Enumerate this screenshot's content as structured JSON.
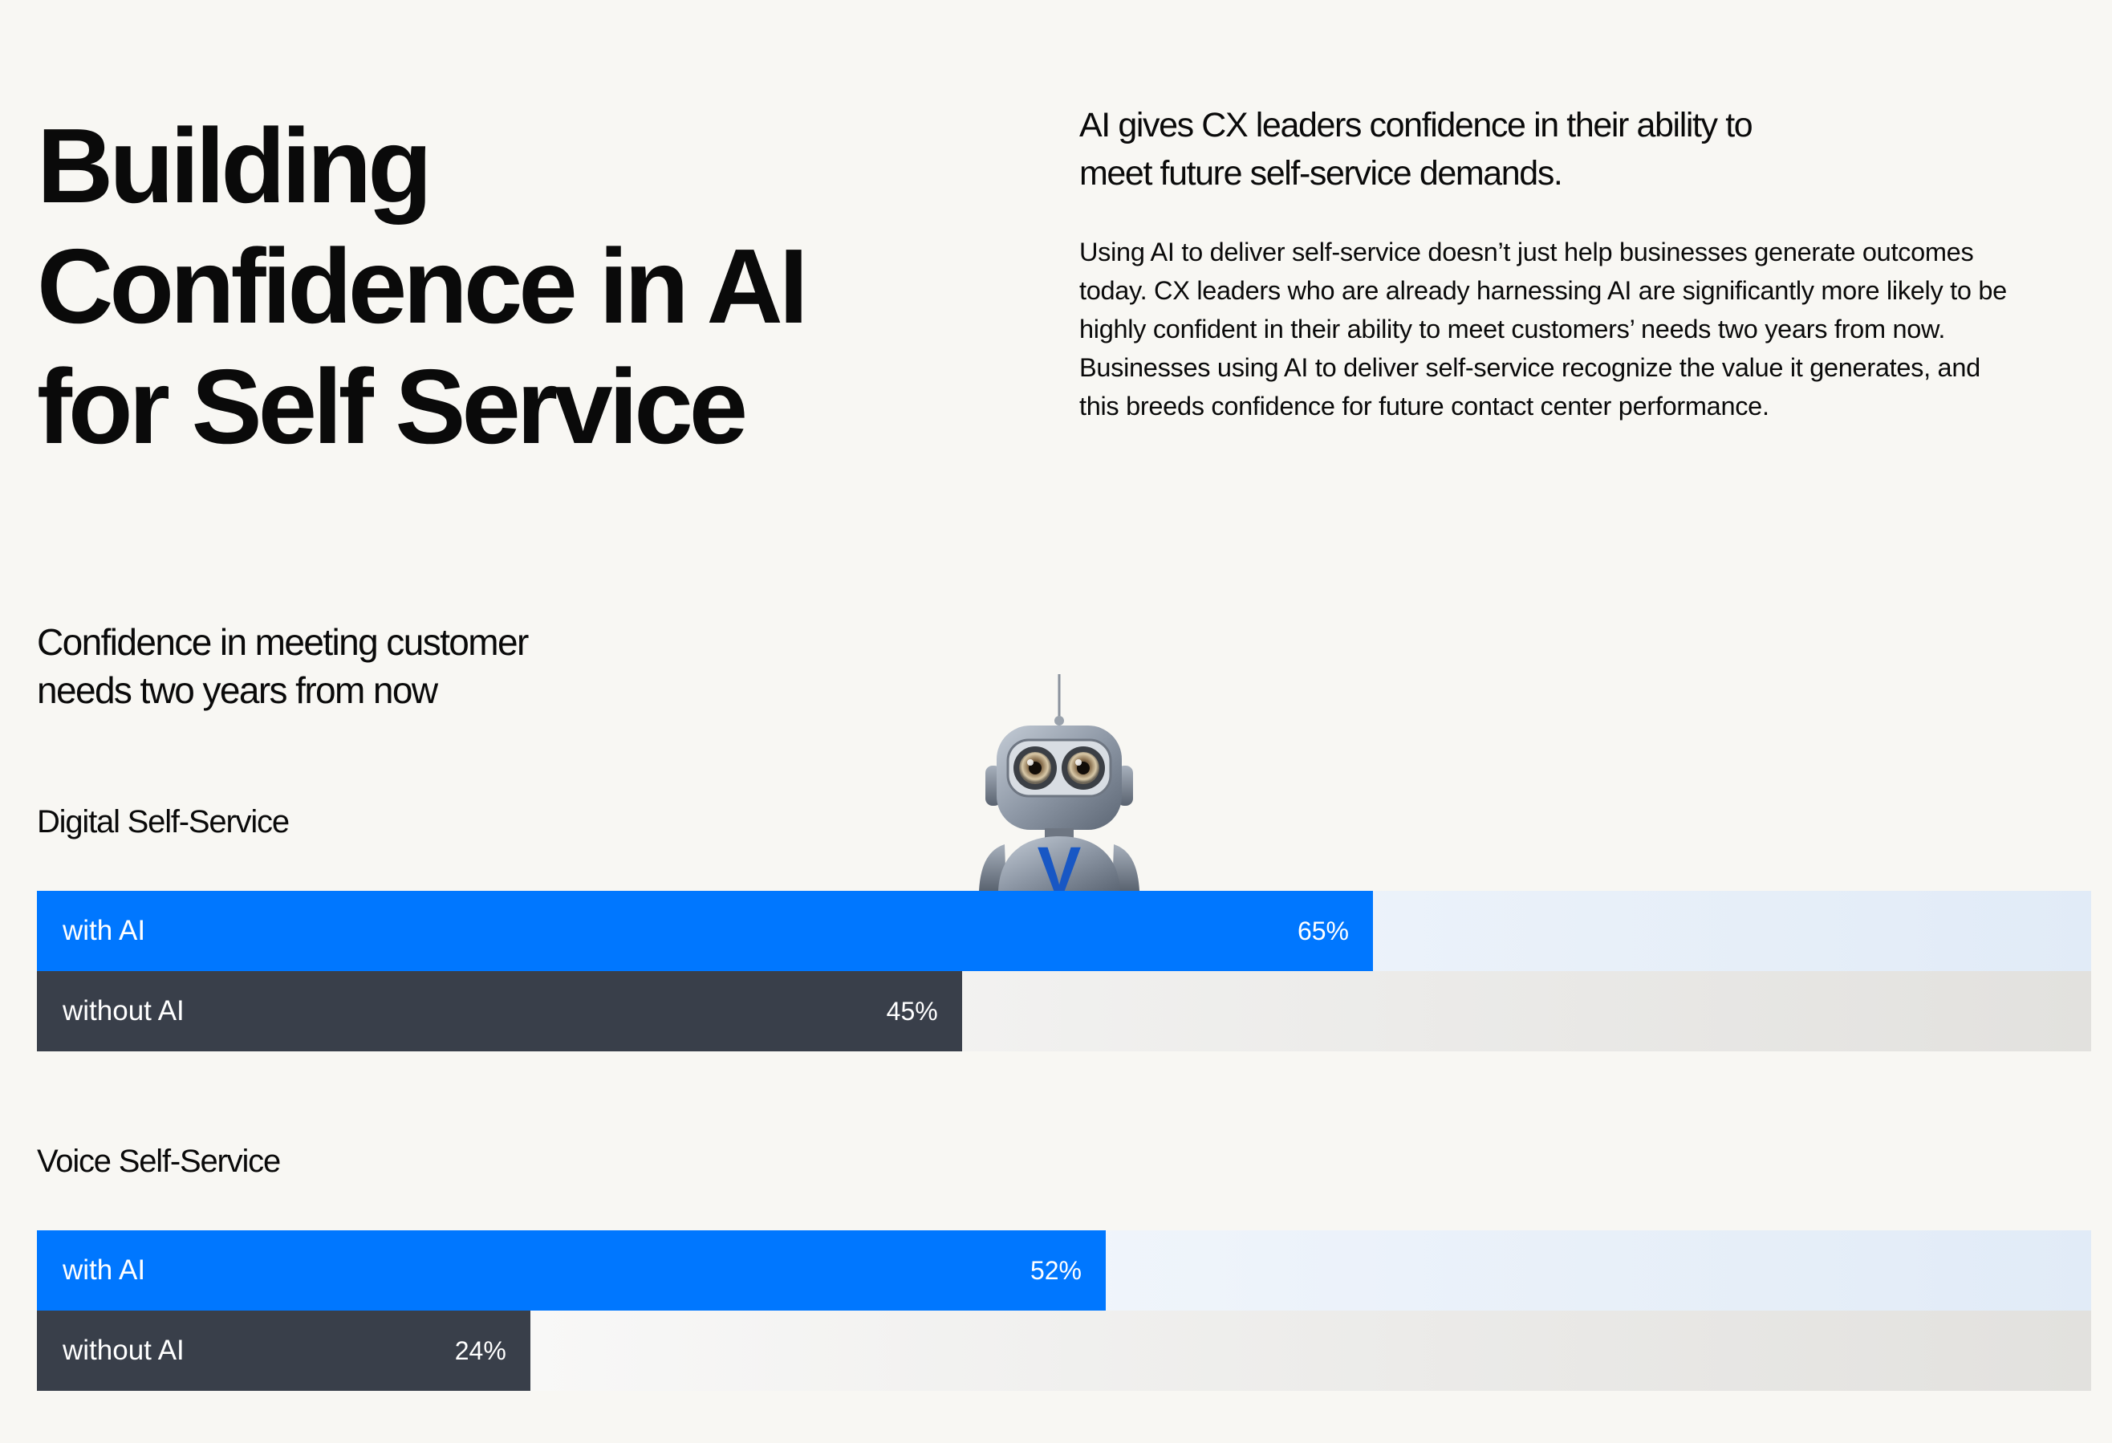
{
  "title_lines": [
    "Building",
    "Confidence in AI",
    "for Self Service"
  ],
  "lead_lines": [
    "AI gives CX leaders confidence in their ability to",
    "meet future self-service demands."
  ],
  "body_lines": [
    "Using AI to deliver self-service doesn’t just help businesses generate outcomes",
    "today. CX leaders who are already harnessing AI are significantly more likely to be",
    "highly confident in their ability to meet customers’ needs two years from now.",
    "Businesses using AI to deliver self-service recognize the value it generates, and",
    "this breeds confidence for future contact center performance."
  ],
  "robot": {
    "icon": "robot-mascot-icon",
    "badge_letter": "V"
  },
  "colors": {
    "with_ai": "#0077ff",
    "without_ai": "#393f4a",
    "background": "#f8f7f3"
  },
  "chart_data": {
    "type": "bar",
    "orientation": "horizontal",
    "title_lines": [
      "Confidence in meeting customer",
      "needs two years from now"
    ],
    "xlim": [
      0,
      100
    ],
    "unit": "%",
    "groups": [
      {
        "name": "Digital Self-Service",
        "bars": [
          {
            "label": "with AI",
            "value": 65,
            "display": "65%"
          },
          {
            "label": "without AI",
            "value": 45,
            "display": "45%"
          }
        ]
      },
      {
        "name": "Voice Self-Service",
        "bars": [
          {
            "label": "with AI",
            "value": 52,
            "display": "52%"
          },
          {
            "label": "without AI",
            "value": 24,
            "display": "24%"
          }
        ]
      }
    ]
  }
}
